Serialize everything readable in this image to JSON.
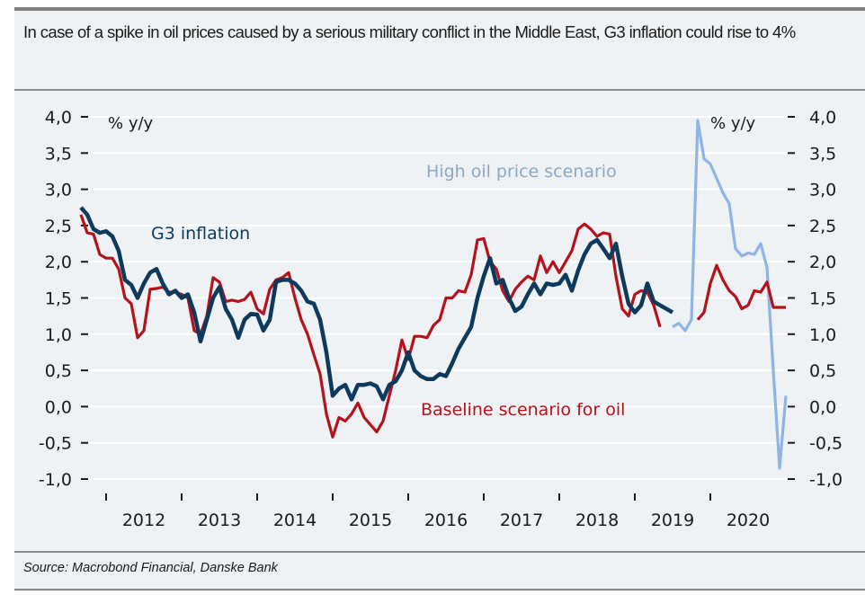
{
  "header": {
    "title": "In case of a spike in oil prices caused by a serious military conflict in the Middle East, G3 inflation could rise to 4%"
  },
  "footer": {
    "source": "Source: Macrobond Financial, Danske Bank"
  },
  "colors": {
    "g3": "#0d3a5c",
    "baseline": "#b5121b",
    "high_oil": "#8fb4e3",
    "high_oil_label": "#8aa7c4",
    "grid": "#ffffff"
  },
  "chart_data": {
    "type": "line",
    "title": "In case of a spike in oil prices caused by a serious military conflict in the Middle East, G3 inflation could rise to 4%",
    "ylabel_left": "% y/y",
    "ylabel_right": "% y/y",
    "ylim": [
      -1.0,
      4.0
    ],
    "yticks": [
      "4,0",
      "3,5",
      "3,0",
      "2,5",
      "2,0",
      "1,5",
      "1,0",
      "0,5",
      "0,0",
      "-0,5",
      "-1,0"
    ],
    "ytick_values": [
      4.0,
      3.5,
      3.0,
      2.5,
      2.0,
      1.5,
      1.0,
      0.5,
      0.0,
      -0.5,
      -1.0
    ],
    "x_start": "2011-09",
    "x_unit": "month",
    "xlim": [
      "2011-07",
      "2020-12"
    ],
    "year_ticks": [
      "2012",
      "2013",
      "2014",
      "2015",
      "2016",
      "2017",
      "2018",
      "2019",
      "2020"
    ],
    "year_labels": [
      "2012",
      "2013",
      "2014",
      "2015",
      "2016",
      "2017",
      "2018",
      "2019",
      "2020"
    ],
    "grid": true,
    "series": [
      {
        "name": "G3 inflation",
        "label": "G3 inflation",
        "start": "2011-09",
        "values": [
          2.75,
          2.65,
          2.45,
          2.4,
          2.42,
          2.35,
          2.15,
          1.75,
          1.68,
          1.5,
          1.7,
          1.85,
          1.9,
          1.7,
          1.55,
          1.6,
          1.5,
          1.55,
          1.3,
          0.9,
          1.2,
          1.5,
          1.65,
          1.35,
          1.2,
          0.95,
          1.2,
          1.28,
          1.27,
          1.05,
          1.2,
          1.72,
          1.75,
          1.75,
          1.7,
          1.6,
          1.45,
          1.42,
          1.2,
          0.75,
          0.15,
          0.25,
          0.3,
          0.1,
          0.3,
          0.3,
          0.32,
          0.28,
          0.1,
          0.3,
          0.35,
          0.5,
          0.75,
          0.5,
          0.42,
          0.38,
          0.38,
          0.45,
          0.42,
          0.6,
          0.8,
          0.95,
          1.1,
          1.5,
          1.8,
          2.05,
          1.7,
          1.75,
          1.5,
          1.32,
          1.38,
          1.55,
          1.7,
          1.55,
          1.7,
          1.68,
          1.7,
          1.82,
          1.6,
          1.88,
          2.1,
          2.25,
          2.3,
          2.18,
          2.05,
          2.25,
          1.8,
          1.42,
          1.3,
          1.4,
          1.7,
          1.45,
          1.4,
          1.35,
          1.3
        ]
      },
      {
        "name": "Baseline scenario for oil",
        "label": "Baseline scenario for oil",
        "start": "2011-09",
        "values": [
          2.65,
          2.4,
          2.38,
          2.1,
          2.05,
          2.05,
          1.9,
          1.5,
          1.42,
          0.95,
          1.05,
          1.62,
          1.63,
          1.65,
          1.58,
          1.58,
          1.55,
          1.5,
          1.05,
          1.0,
          1.25,
          1.78,
          1.72,
          1.45,
          1.47,
          1.45,
          1.48,
          1.58,
          1.35,
          1.28,
          1.62,
          1.75,
          1.78,
          1.85,
          1.5,
          1.2,
          1.0,
          0.72,
          0.45,
          -0.1,
          -0.42,
          -0.15,
          -0.2,
          -0.1,
          0.05,
          -0.15,
          -0.25,
          -0.35,
          -0.2,
          0.15,
          0.5,
          0.92,
          0.65,
          0.97,
          0.97,
          0.95,
          1.12,
          1.2,
          1.5,
          1.5,
          1.6,
          1.58,
          1.82,
          2.3,
          2.32,
          2.0,
          1.9,
          1.6,
          1.45,
          1.62,
          1.72,
          1.8,
          1.75,
          2.08,
          1.85,
          2.0,
          1.85,
          2.0,
          2.15,
          2.45,
          2.52,
          2.45,
          2.35,
          2.4,
          2.38,
          1.8,
          1.35,
          1.25,
          1.55,
          1.6,
          1.58,
          1.4,
          1.1,
          null,
          null,
          null,
          null,
          null,
          1.2,
          1.3,
          1.7,
          1.95,
          1.75,
          1.6,
          1.52,
          1.35,
          1.4,
          1.6,
          1.58,
          1.72,
          1.37,
          1.37,
          1.37
        ]
      },
      {
        "name": "High oil price scenario",
        "label": "High oil price scenario",
        "start": "2019-07",
        "values": [
          1.1,
          1.15,
          1.05,
          1.2,
          3.95,
          3.42,
          3.35,
          3.15,
          2.95,
          2.8,
          2.18,
          2.08,
          2.12,
          2.1,
          2.25,
          1.92,
          0.5,
          -0.85,
          0.15
        ]
      }
    ]
  }
}
